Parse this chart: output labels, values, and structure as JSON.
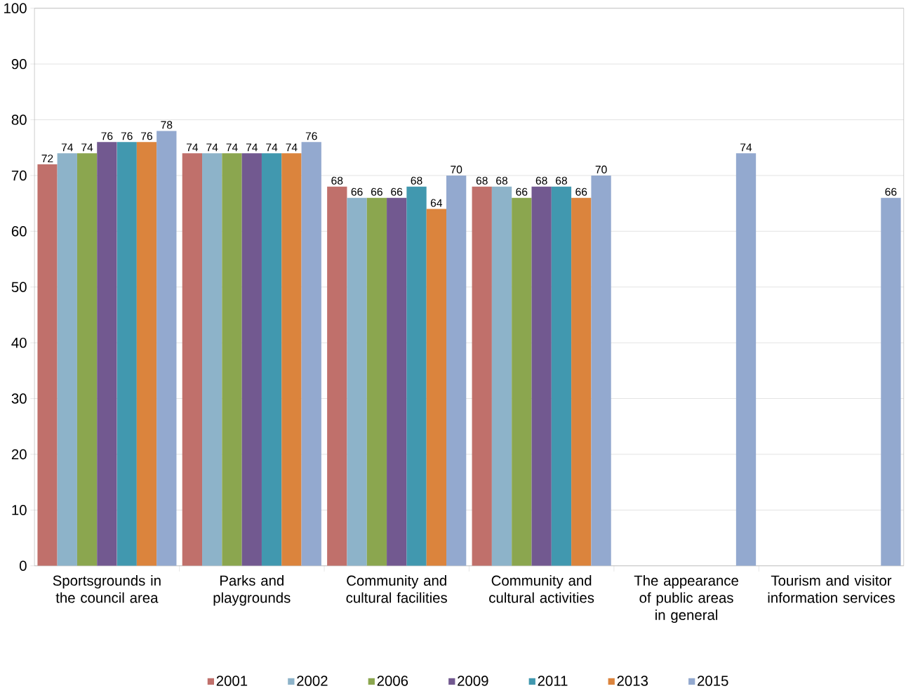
{
  "chart_data": {
    "type": "bar",
    "categories": [
      "Sportsgrounds in the council area",
      "Parks and playgrounds",
      "Community and cultural facilities",
      "Community and cultural activities",
      "The appearance of public areas in general",
      "Tourism and visitor information services"
    ],
    "series": [
      {
        "name": "2001",
        "color": "#c0706b",
        "values": [
          72,
          74,
          68,
          68,
          null,
          null
        ]
      },
      {
        "name": "2002",
        "color": "#8db3c9",
        "values": [
          74,
          74,
          66,
          68,
          null,
          null
        ]
      },
      {
        "name": "2006",
        "color": "#8ba64f",
        "values": [
          74,
          74,
          66,
          66,
          null,
          null
        ]
      },
      {
        "name": "2009",
        "color": "#725990",
        "values": [
          76,
          74,
          66,
          68,
          null,
          null
        ]
      },
      {
        "name": "2011",
        "color": "#4198af",
        "values": [
          76,
          74,
          68,
          68,
          null,
          null
        ]
      },
      {
        "name": "2013",
        "color": "#db843d",
        "values": [
          76,
          74,
          64,
          66,
          null,
          null
        ]
      },
      {
        "name": "2015",
        "color": "#93a9cf",
        "values": [
          78,
          76,
          70,
          70,
          74,
          66
        ]
      }
    ],
    "ylim": [
      0,
      100
    ],
    "yticks": [
      0,
      10,
      20,
      30,
      40,
      50,
      60,
      70,
      80,
      90,
      100
    ],
    "grid": "y",
    "legend": "bottom",
    "data_labels": true
  }
}
